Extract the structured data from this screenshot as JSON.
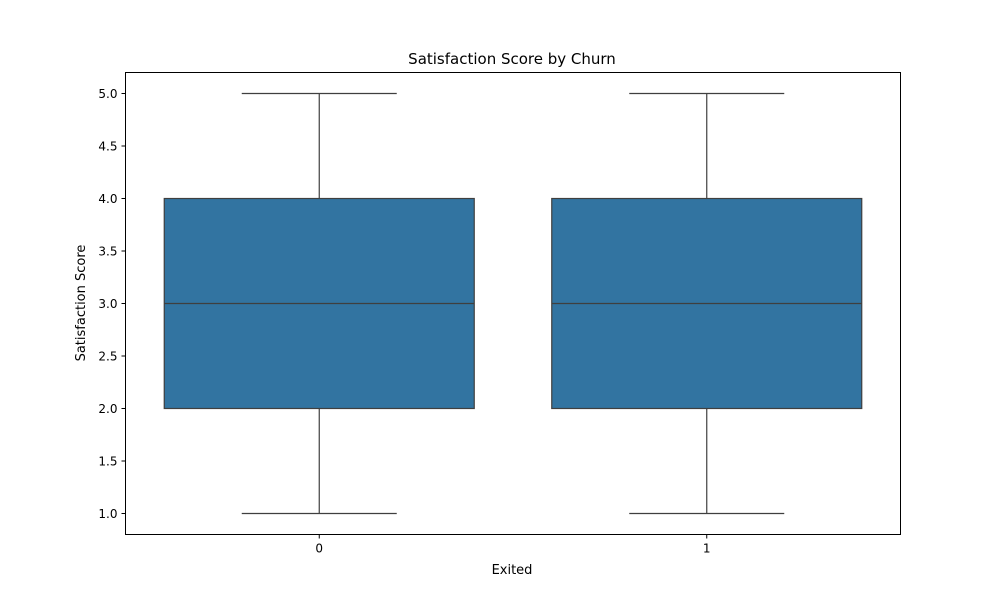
{
  "chart_data": {
    "type": "box",
    "title": "Satisfaction Score by Churn",
    "xlabel": "Exited",
    "ylabel": "Satisfaction Score",
    "categories": [
      "0",
      "1"
    ],
    "boxes": [
      {
        "category": "0",
        "whisker_low": 1.0,
        "q1": 2.0,
        "median": 3.0,
        "q3": 4.0,
        "whisker_high": 5.0
      },
      {
        "category": "1",
        "whisker_low": 1.0,
        "q1": 2.0,
        "median": 3.0,
        "q3": 4.0,
        "whisker_high": 5.0
      }
    ],
    "ylim": [
      0.8,
      5.2
    ],
    "yticks": [
      "1.0",
      "1.5",
      "2.0",
      "2.5",
      "3.0",
      "3.5",
      "4.0",
      "4.5",
      "5.0"
    ],
    "grid": false,
    "box_color": "#3274a1",
    "line_color": "#3f3f3f"
  }
}
